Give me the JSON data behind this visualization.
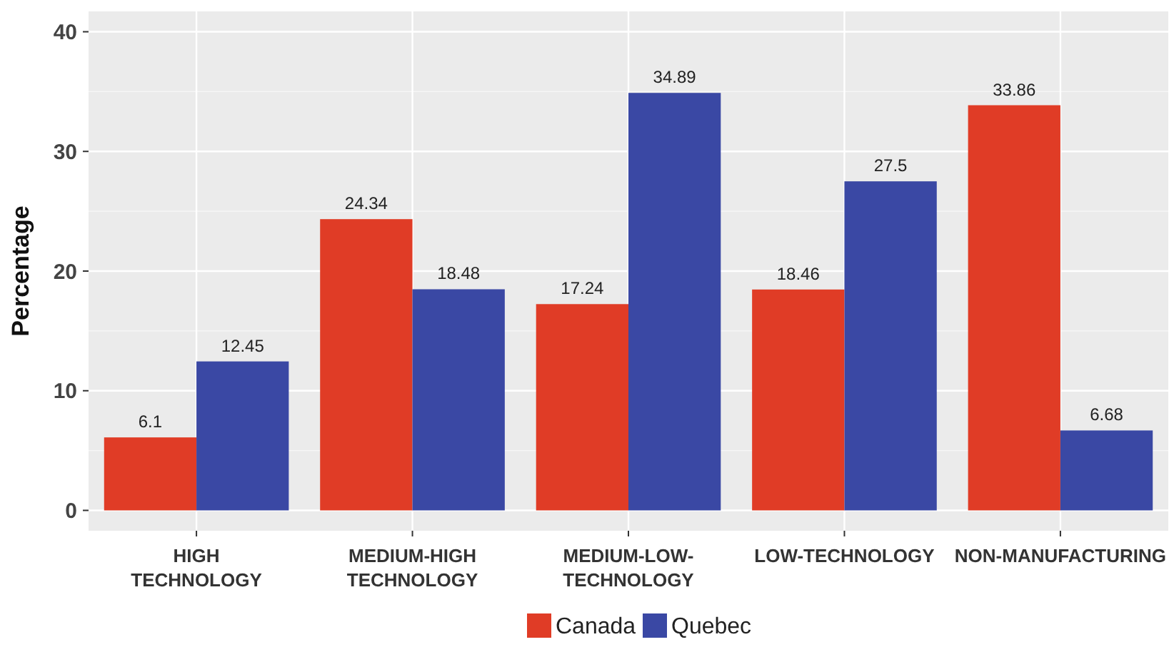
{
  "chart_data": {
    "type": "bar",
    "ylabel": "Percentage",
    "categories": [
      "HIGH TECHNOLOGY",
      "MEDIUM-HIGH TECHNOLOGY",
      "MEDIUM-LOW-TECHNOLOGY",
      "LOW-TECHNOLOGY",
      "NON-MANUFACTURING"
    ],
    "series": [
      {
        "name": "Canada",
        "color": "#e03c26",
        "values": [
          6.1,
          24.34,
          17.24,
          18.46,
          33.86
        ]
      },
      {
        "name": "Quebec",
        "color": "#3a48a4",
        "values": [
          12.45,
          18.48,
          34.89,
          27.5,
          6.68
        ]
      }
    ],
    "ylim": [
      -1.7,
      41.7
    ],
    "yticks": [
      0,
      10,
      20,
      30,
      40
    ],
    "grid": true,
    "legend": "bottom",
    "data_labels": true
  }
}
